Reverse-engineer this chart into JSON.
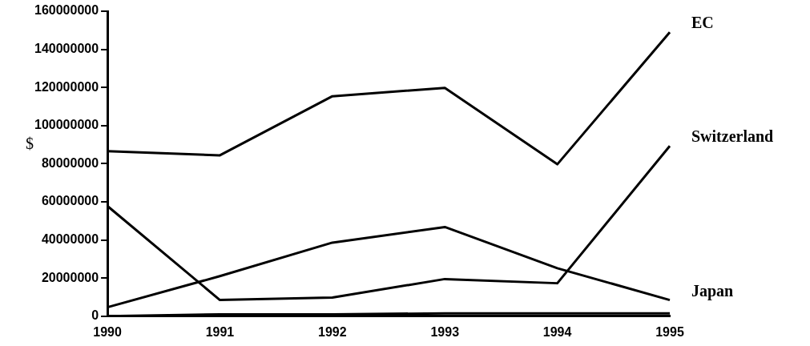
{
  "chart_data": {
    "type": "line",
    "ylabel": "$",
    "categories": [
      "1990",
      "1991",
      "1992",
      "1993",
      "1994",
      "1995"
    ],
    "ylim": [
      0,
      160000000
    ],
    "yticks": [
      0,
      20000000,
      40000000,
      60000000,
      80000000,
      100000000,
      120000000,
      140000000,
      160000000
    ],
    "grid": false,
    "legend": false,
    "marker": "none",
    "line_style": "solid",
    "series": [
      {
        "name": "EC",
        "color": "#000000",
        "values": [
          86600000,
          84400000,
          115400000,
          119800000,
          79700000,
          149000000
        ]
      },
      {
        "name": "Switzerland",
        "color": "#000000",
        "values": [
          57800000,
          8500000,
          9800000,
          19500000,
          17300000,
          89300000
        ]
      },
      {
        "name": "Japan",
        "color": "#000000",
        "values": [
          4700000,
          21000000,
          38600000,
          46800000,
          25200000,
          8500000
        ]
      },
      {
        "color": "#000000",
        "values": [
          0,
          1000000,
          1000000,
          1500000,
          1500000,
          1500000
        ]
      }
    ]
  }
}
